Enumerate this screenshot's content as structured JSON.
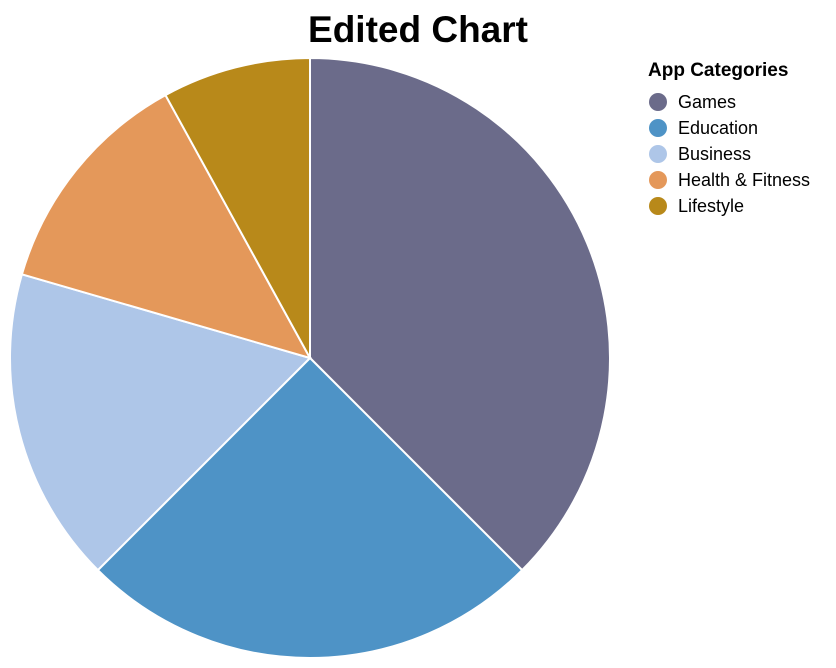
{
  "chart_data": {
    "type": "pie",
    "title": "Edited Chart",
    "legend_title": "App Categories",
    "legend_position": "top-right",
    "categories": [
      "Games",
      "Education",
      "Business",
      "Health & Fitness",
      "Lifestyle"
    ],
    "values": [
      37.5,
      25,
      17,
      12.5,
      8
    ],
    "colors": [
      "#6b6b8a",
      "#4e93c6",
      "#aec6e8",
      "#e4985a",
      "#b8891a"
    ]
  }
}
